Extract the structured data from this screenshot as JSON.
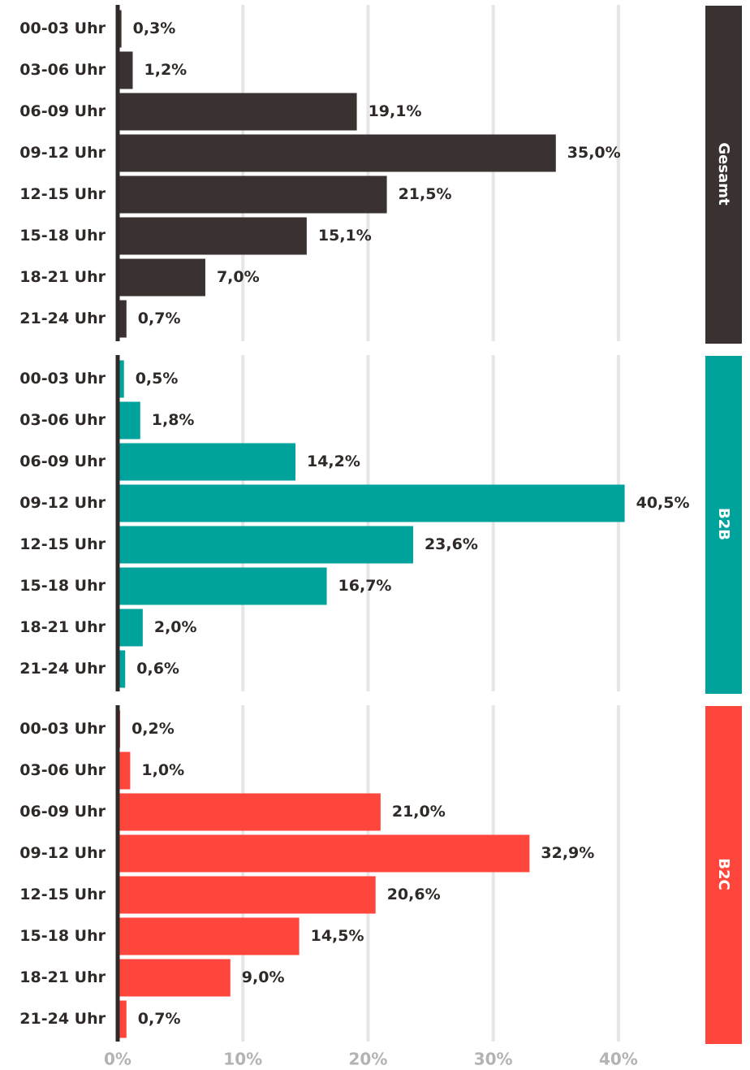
{
  "chart_data": [
    {
      "type": "bar",
      "orientation": "horizontal",
      "title": "Gesamt",
      "color": "#3a3230",
      "categories": [
        "00-03 Uhr",
        "03-06 Uhr",
        "06-09 Uhr",
        "09-12 Uhr",
        "12-15 Uhr",
        "15-18 Uhr",
        "18-21 Uhr",
        "21-24 Uhr"
      ],
      "values": [
        0.3,
        1.2,
        19.1,
        35.0,
        21.5,
        15.1,
        7.0,
        0.7
      ],
      "value_labels": [
        "0,3%",
        "1,2%",
        "19,1%",
        "35,0%",
        "21,5%",
        "15,1%",
        "7,0%",
        "0,7%"
      ],
      "xlim": [
        0,
        45
      ],
      "grid": true
    },
    {
      "type": "bar",
      "orientation": "horizontal",
      "title": "B2B",
      "color": "#00a39b",
      "categories": [
        "00-03 Uhr",
        "03-06 Uhr",
        "06-09 Uhr",
        "09-12 Uhr",
        "12-15 Uhr",
        "15-18 Uhr",
        "18-21 Uhr",
        "21-24 Uhr"
      ],
      "values": [
        0.5,
        1.8,
        14.2,
        40.5,
        23.6,
        16.7,
        2.0,
        0.6
      ],
      "value_labels": [
        "0,5%",
        "1,8%",
        "14,2%",
        "40,5%",
        "23,6%",
        "16,7%",
        "2,0%",
        "0,6%"
      ],
      "xlim": [
        0,
        45
      ],
      "grid": true
    },
    {
      "type": "bar",
      "orientation": "horizontal",
      "title": "B2C",
      "color": "#ff463c",
      "categories": [
        "00-03 Uhr",
        "03-06 Uhr",
        "06-09 Uhr",
        "09-12 Uhr",
        "12-15 Uhr",
        "15-18 Uhr",
        "18-21 Uhr",
        "21-24 Uhr"
      ],
      "values": [
        0.2,
        1.0,
        21.0,
        32.9,
        20.6,
        14.5,
        9.0,
        0.7
      ],
      "value_labels": [
        "0,2%",
        "1,0%",
        "21,0%",
        "32,9%",
        "20,6%",
        "14,5%",
        "9,0%",
        "0,7%"
      ],
      "xlim": [
        0,
        45
      ],
      "grid": true,
      "xticks": [
        {
          "value": 0,
          "label": "0%"
        },
        {
          "value": 10,
          "label": "10%"
        },
        {
          "value": 20,
          "label": "20%"
        },
        {
          "value": 30,
          "label": "30%"
        },
        {
          "value": 40,
          "label": "40%"
        }
      ]
    }
  ]
}
